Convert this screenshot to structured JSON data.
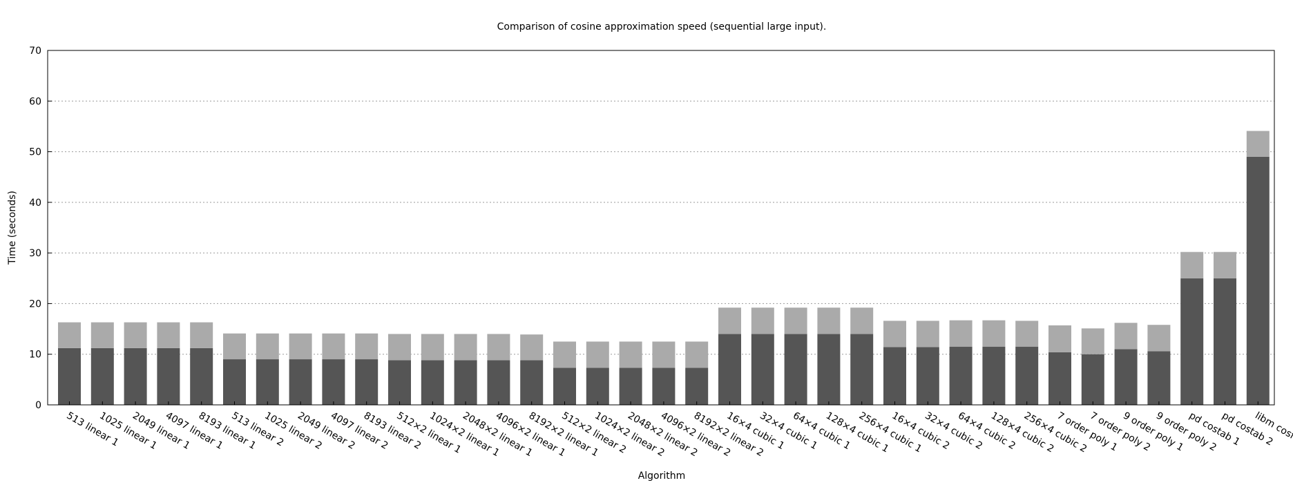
{
  "chart_data": {
    "type": "bar",
    "stacked": true,
    "title": "Comparison of cosine approximation speed (sequential large input).",
    "xlabel": "Algorithm",
    "ylabel": "Time (seconds)",
    "ylim": [
      0,
      70
    ],
    "yticks": [
      0,
      10,
      20,
      30,
      40,
      50,
      60,
      70
    ],
    "grid": true,
    "colors": [
      "#555555",
      "#aaaaaa"
    ],
    "categories": [
      "513 linear 1",
      "1025 linear 1",
      "2049 linear 1",
      "4097 linear 1",
      "8193 linear 1",
      "513 linear 2",
      "1025 linear 2",
      "2049 linear 2",
      "4097 linear 2",
      "8193 linear 2",
      "512×2 linear 1",
      "1024×2 linear 1",
      "2048×2 linear 1",
      "4096×2 linear 1",
      "8192×2 linear 1",
      "512×2 linear 2",
      "1024×2 linear 2",
      "2048×2 linear 2",
      "4096×2 linear 2",
      "8192×2 linear 2",
      "16×4 cubic 1",
      "32×4 cubic 1",
      "64×4 cubic 1",
      "128×4 cubic 1",
      "256×4 cubic 1",
      "16×4 cubic 2",
      "32×4 cubic 2",
      "64×4 cubic 2",
      "128×4 cubic 2",
      "256×4 cubic 2",
      "7 order poly 1",
      "7 order poly 2",
      "9 order poly 1",
      "9 order poly 2",
      "pd costab 1",
      "pd costab 2",
      "libm cosf()"
    ],
    "series": [
      {
        "values": [
          11.2,
          11.2,
          11.2,
          11.2,
          11.2,
          9.0,
          9.0,
          9.0,
          9.0,
          9.0,
          8.8,
          8.8,
          8.8,
          8.8,
          8.8,
          7.3,
          7.3,
          7.3,
          7.3,
          7.3,
          14.0,
          14.0,
          14.0,
          14.0,
          14.0,
          11.4,
          11.4,
          11.5,
          11.5,
          11.5,
          10.4,
          10.0,
          11.0,
          10.6,
          25.0,
          25.0,
          49.0
        ]
      },
      {
        "values": [
          5.1,
          5.1,
          5.1,
          5.1,
          5.1,
          5.1,
          5.1,
          5.1,
          5.1,
          5.1,
          5.2,
          5.2,
          5.2,
          5.2,
          5.1,
          5.2,
          5.2,
          5.2,
          5.2,
          5.2,
          5.2,
          5.2,
          5.2,
          5.2,
          5.2,
          5.2,
          5.2,
          5.2,
          5.2,
          5.1,
          5.3,
          5.1,
          5.2,
          5.2,
          5.2,
          5.2,
          5.1
        ]
      }
    ]
  }
}
